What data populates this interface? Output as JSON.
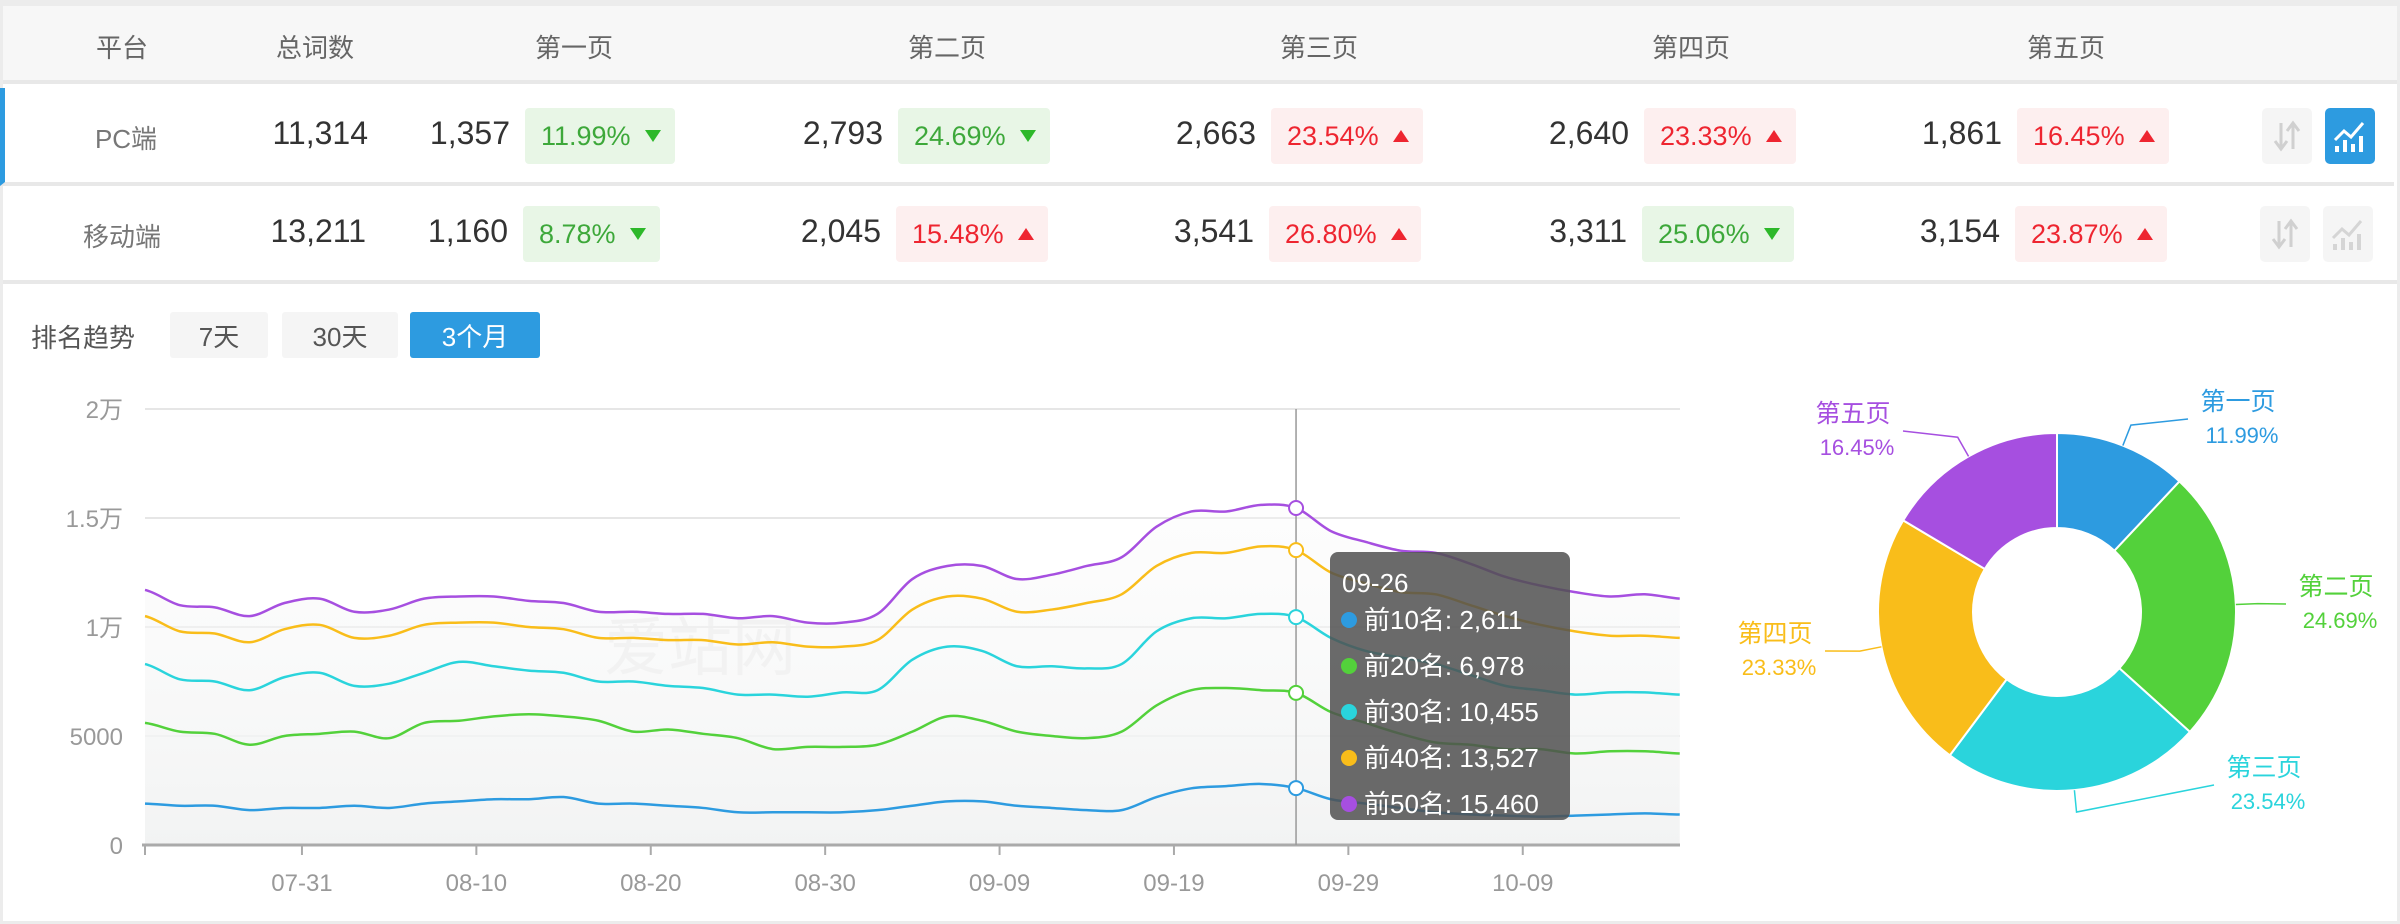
{
  "table": {
    "headers": [
      "平台",
      "总词数",
      "第一页",
      "第二页",
      "第三页",
      "第四页",
      "第五页"
    ],
    "rows": [
      {
        "platform": "PC端",
        "total": "11,314",
        "pages": [
          {
            "count": "1,357",
            "pct": "11.99%",
            "dir": "down"
          },
          {
            "count": "2,793",
            "pct": "24.69%",
            "dir": "down"
          },
          {
            "count": "2,663",
            "pct": "23.54%",
            "dir": "up"
          },
          {
            "count": "2,640",
            "pct": "23.33%",
            "dir": "up"
          },
          {
            "count": "1,861",
            "pct": "16.45%",
            "dir": "up"
          }
        ],
        "chart_active": true
      },
      {
        "platform": "移动端",
        "total": "13,211",
        "pages": [
          {
            "count": "1,160",
            "pct": "8.78%",
            "dir": "down"
          },
          {
            "count": "2,045",
            "pct": "15.48%",
            "dir": "up"
          },
          {
            "count": "3,541",
            "pct": "26.80%",
            "dir": "up"
          },
          {
            "count": "3,311",
            "pct": "25.06%",
            "dir": "down"
          },
          {
            "count": "3,154",
            "pct": "23.87%",
            "dir": "up"
          }
        ],
        "chart_active": false
      }
    ],
    "icons": [
      "sort-icon",
      "trend-chart-icon"
    ]
  },
  "trend": {
    "label": "排名趋势",
    "ranges": [
      "7天",
      "30天",
      "3个月"
    ],
    "active_range": "3个月"
  },
  "watermark": "爱站网",
  "colors": {
    "accent": "#2d9be0",
    "up": "#ee2530",
    "down": "#3da83a"
  },
  "chart_data": [
    {
      "type": "line",
      "x_start": "07-22",
      "x_step_days": 2,
      "x_ticks": [
        "07-31",
        "08-10",
        "08-20",
        "08-30",
        "09-09",
        "09-19",
        "09-29",
        "10-09"
      ],
      "y_ticks": [
        "0",
        "5000",
        "1万",
        "1.5万",
        "2万"
      ],
      "ylim": [
        0,
        20000
      ],
      "grid": true,
      "series": [
        {
          "name": "前10名",
          "color": "#2d9be0",
          "values": [
            1900,
            1800,
            1800,
            1600,
            1700,
            1700,
            1800,
            1700,
            1900,
            2000,
            2100,
            2100,
            2200,
            1900,
            1900,
            1800,
            1700,
            1500,
            1500,
            1500,
            1500,
            1600,
            1800,
            2000,
            2000,
            1800,
            1700,
            1600,
            1600,
            2200,
            2600,
            2700,
            2800,
            2611,
            2100,
            1900,
            1700,
            1500,
            1400,
            1350,
            1300,
            1350,
            1400,
            1450,
            1400
          ]
        },
        {
          "name": "前20名",
          "color": "#53d13b",
          "values": [
            5600,
            5200,
            5100,
            4600,
            5000,
            5100,
            5200,
            4900,
            5600,
            5700,
            5900,
            6000,
            5900,
            5700,
            5200,
            5300,
            5100,
            4900,
            4400,
            4500,
            4500,
            4600,
            5200,
            5900,
            5700,
            5200,
            5000,
            4900,
            5200,
            6400,
            7100,
            7200,
            7100,
            6978,
            6100,
            5600,
            5100,
            4700,
            4600,
            4400,
            4400,
            4200,
            4300,
            4300,
            4200
          ]
        },
        {
          "name": "前30名",
          "color": "#2ad4dc",
          "values": [
            8300,
            7600,
            7500,
            7100,
            7700,
            7900,
            7300,
            7400,
            7900,
            8400,
            8200,
            8000,
            7900,
            7500,
            7500,
            7300,
            7200,
            6900,
            6900,
            6800,
            7000,
            7100,
            8500,
            9100,
            8900,
            8200,
            8200,
            8100,
            8300,
            9800,
            10400,
            10400,
            10600,
            10455,
            9500,
            8900,
            8600,
            8300,
            7800,
            7300,
            7100,
            6900,
            7000,
            7000,
            6900
          ]
        },
        {
          "name": "前40名",
          "color": "#f9bd1a",
          "values": [
            10500,
            9800,
            9700,
            9300,
            9900,
            10100,
            9500,
            9600,
            10100,
            10200,
            10200,
            10000,
            9900,
            9500,
            9500,
            9400,
            9400,
            9200,
            9300,
            9100,
            9100,
            9400,
            10800,
            11400,
            11300,
            10700,
            10800,
            11100,
            11500,
            12800,
            13400,
            13400,
            13700,
            13527,
            12500,
            12000,
            11600,
            11500,
            11000,
            10500,
            10100,
            9800,
            9600,
            9600,
            9500
          ]
        },
        {
          "name": "前50名",
          "color": "#a64fe0",
          "values": [
            11700,
            11000,
            10900,
            10500,
            11100,
            11300,
            10700,
            10800,
            11300,
            11400,
            11400,
            11200,
            11100,
            10700,
            10700,
            10600,
            10600,
            10400,
            10500,
            10200,
            10200,
            10600,
            12200,
            12800,
            12800,
            12200,
            12400,
            12800,
            13200,
            14600,
            15300,
            15300,
            15600,
            15460,
            14400,
            13900,
            13500,
            13400,
            12900,
            12300,
            11900,
            11600,
            11400,
            11500,
            11300
          ]
        }
      ],
      "tooltip": {
        "date": "09-26",
        "items": [
          "前10名: 2,611",
          "前20名: 6,978",
          "前30名: 10,455",
          "前40名: 13,527",
          "前50名: 15,460"
        ]
      }
    },
    {
      "type": "pie",
      "donut": true,
      "slices": [
        {
          "label": "第一页",
          "pct_label": "11.99%",
          "value": 11.99,
          "color": "#2d9be0"
        },
        {
          "label": "第二页",
          "pct_label": "24.69%",
          "value": 24.69,
          "color": "#53d13b"
        },
        {
          "label": "第三页",
          "pct_label": "23.54%",
          "value": 23.54,
          "color": "#2ad4dc"
        },
        {
          "label": "第四页",
          "pct_label": "23.33%",
          "value": 23.33,
          "color": "#f9bd1a"
        },
        {
          "label": "第五页",
          "pct_label": "16.45%",
          "value": 16.45,
          "color": "#a64fe0"
        }
      ]
    }
  ]
}
